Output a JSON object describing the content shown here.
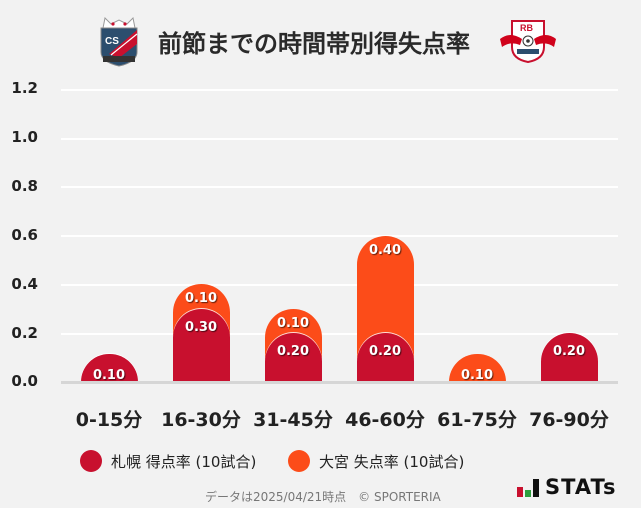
{
  "header": {
    "title": "前節までの時間帯別得失点率",
    "left_logo": "consadole-sapporo-crest",
    "right_logo": "rb-omiya-ardija-crest"
  },
  "y_axis": {
    "ticks": [
      "1.2",
      "1.0",
      "0.8",
      "0.6",
      "0.4",
      "0.2",
      "0.0"
    ]
  },
  "x_axis": {
    "labels": [
      "0-15分",
      "16-30分",
      "31-45分",
      "46-60分",
      "61-75分",
      "76-90分"
    ]
  },
  "legend": {
    "home": {
      "label": "札幌 得点率 (10試合)",
      "color": "#c8102e"
    },
    "away": {
      "label": "大宮 失点率 (10試合)",
      "color": "#fc4c19"
    }
  },
  "bars": [
    {
      "home": 0.1,
      "away": 0.0,
      "home_label": "0.10",
      "away_label": ""
    },
    {
      "home": 0.3,
      "away": 0.1,
      "home_label": "0.30",
      "away_label": "0.10"
    },
    {
      "home": 0.2,
      "away": 0.1,
      "home_label": "0.20",
      "away_label": "0.10"
    },
    {
      "home": 0.2,
      "away": 0.4,
      "home_label": "0.20",
      "away_label": "0.40"
    },
    {
      "home": 0.0,
      "away": 0.1,
      "home_label": "",
      "away_label": "0.10"
    },
    {
      "home": 0.2,
      "away": 0.0,
      "home_label": "0.20",
      "away_label": ""
    }
  ],
  "footer": {
    "note": "データは2025/04/21時点　© SPORTERIA",
    "brand": "STATs"
  },
  "chart_data": {
    "type": "bar",
    "title": "前節までの時間帯別得失点率",
    "categories": [
      "0-15分",
      "16-30分",
      "31-45分",
      "46-60分",
      "61-75分",
      "76-90分"
    ],
    "series": [
      {
        "name": "札幌 得点率 (10試合)",
        "color": "#c8102e",
        "values": [
          0.1,
          0.3,
          0.2,
          0.2,
          0.0,
          0.2
        ]
      },
      {
        "name": "大宮 失点率 (10試合)",
        "color": "#fc4c19",
        "values": [
          0.0,
          0.1,
          0.1,
          0.4,
          0.1,
          0.0
        ]
      }
    ],
    "stacked": true,
    "xlabel": "",
    "ylabel": "",
    "ylim": [
      0,
      1.2
    ],
    "yticks": [
      0.0,
      0.2,
      0.4,
      0.6,
      0.8,
      1.0,
      1.2
    ],
    "grid": true,
    "legend_position": "bottom",
    "note": "データは2025/04/21時点 © SPORTERIA"
  }
}
